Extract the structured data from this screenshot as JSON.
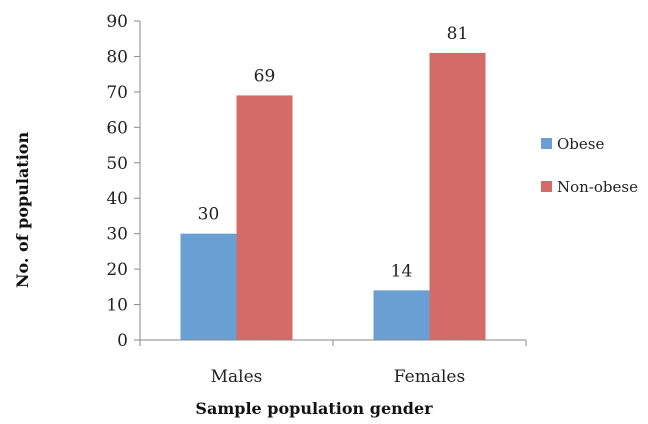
{
  "chart_data": {
    "type": "bar",
    "categories": [
      "Males",
      "Females"
    ],
    "series": [
      {
        "name": "Obese",
        "values": [
          30,
          14
        ],
        "color": "#6a9fd4"
      },
      {
        "name": "Non-obese",
        "values": [
          69,
          81
        ],
        "color": "#d56b66"
      }
    ],
    "xlabel": "Sample population gender",
    "ylabel": "No. of population",
    "ylim": [
      0,
      90
    ],
    "yticks": [
      0,
      10,
      20,
      30,
      40,
      50,
      60,
      70,
      80,
      90
    ],
    "grid": false,
    "legend": "right",
    "data_labels": true
  }
}
